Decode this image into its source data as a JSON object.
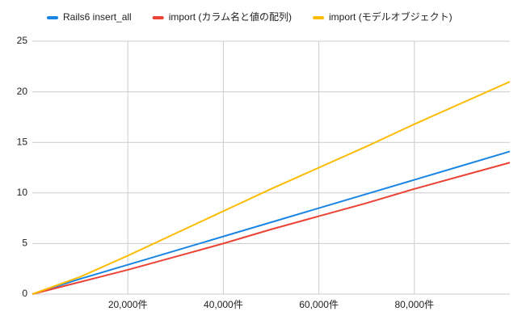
{
  "chart_data": {
    "type": "line",
    "x": [
      0,
      10000,
      20000,
      30000,
      40000,
      50000,
      60000,
      70000,
      80000,
      90000,
      100000
    ],
    "series": [
      {
        "name": "Rails6 insert_all",
        "color": "#1a86e3",
        "values": [
          0,
          1.5,
          2.9,
          4.3,
          5.7,
          7.1,
          8.5,
          9.9,
          11.3,
          12.7,
          14.1
        ]
      },
      {
        "name": "import (カラム名と値の配列)",
        "color": "#ea4335",
        "values": [
          0,
          1.2,
          2.4,
          3.7,
          5.0,
          6.4,
          7.7,
          9.0,
          10.4,
          11.7,
          13.0
        ]
      },
      {
        "name": "import (モデルオブジェクト)",
        "color": "#fbbc04",
        "values": [
          0,
          1.7,
          3.8,
          6.0,
          8.2,
          10.4,
          12.5,
          14.6,
          16.8,
          18.9,
          21.0
        ]
      }
    ],
    "xlim": [
      0,
      100000
    ],
    "xticks": [
      {
        "value": 20000,
        "label": "20,000件"
      },
      {
        "value": 40000,
        "label": "40,000件"
      },
      {
        "value": 60000,
        "label": "60,000件"
      },
      {
        "value": 80000,
        "label": "80,000件"
      }
    ],
    "ylim": [
      0,
      25
    ],
    "yticks": [
      0,
      5,
      10,
      15,
      20,
      25
    ],
    "grid": true
  }
}
